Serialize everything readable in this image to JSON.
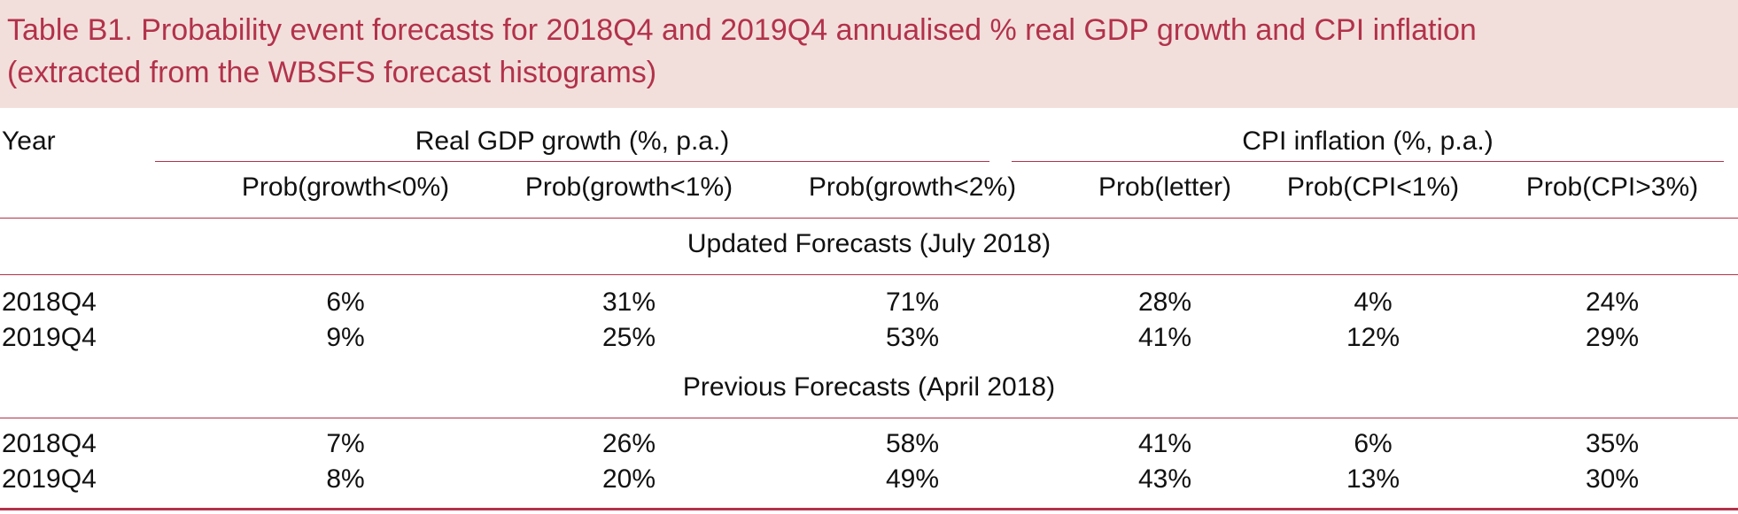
{
  "caption": {
    "line1": "Table B1. Probability event forecasts for 2018Q4 and 2019Q4 annualised % real GDP growth and CPI inflation",
    "line2": "(extracted from the WBSFS forecast histograms)"
  },
  "header": {
    "year_label": "Year",
    "group_gdp": "Real GDP growth (%, p.a.)",
    "group_cpi": "CPI inflation (%, p.a.)",
    "columns": [
      "Prob(growth<0%)",
      "Prob(growth<1%)",
      "Prob(growth<2%)",
      "Prob(letter)",
      "Prob(CPI<1%)",
      "Prob(CPI>3%)"
    ]
  },
  "sections": [
    {
      "title": "Updated Forecasts (July 2018)",
      "rows": [
        {
          "year": "2018Q4",
          "values": [
            "6%",
            "31%",
            "71%",
            "28%",
            "4%",
            "24%"
          ]
        },
        {
          "year": "2019Q4",
          "values": [
            "9%",
            "25%",
            "53%",
            "41%",
            "12%",
            "29%"
          ]
        }
      ]
    },
    {
      "title": "Previous Forecasts (April 2018)",
      "rows": [
        {
          "year": "2018Q4",
          "values": [
            "7%",
            "26%",
            "58%",
            "41%",
            "6%",
            "35%"
          ]
        },
        {
          "year": "2019Q4",
          "values": [
            "8%",
            "20%",
            "49%",
            "43%",
            "13%",
            "30%"
          ]
        }
      ]
    }
  ],
  "colors": {
    "accent": "#b2324a",
    "caption_bg": "#f2dfdc"
  }
}
